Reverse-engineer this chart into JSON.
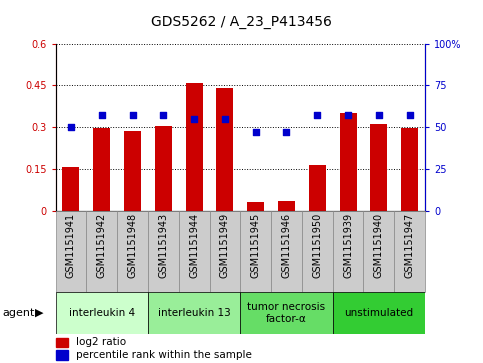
{
  "title": "GDS5262 / A_23_P413456",
  "samples": [
    "GSM1151941",
    "GSM1151942",
    "GSM1151948",
    "GSM1151943",
    "GSM1151944",
    "GSM1151949",
    "GSM1151945",
    "GSM1151946",
    "GSM1151950",
    "GSM1151939",
    "GSM1151940",
    "GSM1151947"
  ],
  "log2_ratio": [
    0.155,
    0.295,
    0.285,
    0.305,
    0.46,
    0.44,
    0.03,
    0.035,
    0.165,
    0.35,
    0.31,
    0.295
  ],
  "percentile": [
    50,
    57,
    57,
    57,
    55,
    55,
    47,
    47,
    57,
    57,
    57,
    57
  ],
  "bar_color": "#cc0000",
  "dot_color": "#0000cc",
  "ylim_left": [
    0,
    0.6
  ],
  "ylim_right": [
    0,
    100
  ],
  "yticks_left": [
    0,
    0.15,
    0.3,
    0.45,
    0.6
  ],
  "yticks_right": [
    0,
    25,
    50,
    75,
    100
  ],
  "yticklabels_left": [
    "0",
    "0.15",
    "0.3",
    "0.45",
    "0.6"
  ],
  "yticklabels_right": [
    "0",
    "25",
    "50",
    "75",
    "100%"
  ],
  "groups": [
    {
      "label": "interleukin 4",
      "indices": [
        0,
        1,
        2
      ],
      "color": "#ccffcc"
    },
    {
      "label": "interleukin 13",
      "indices": [
        3,
        4,
        5
      ],
      "color": "#99ee99"
    },
    {
      "label": "tumor necrosis\nfactor-α",
      "indices": [
        6,
        7,
        8
      ],
      "color": "#66dd66"
    },
    {
      "label": "unstimulated",
      "indices": [
        9,
        10,
        11
      ],
      "color": "#33cc33"
    }
  ],
  "agent_label": "agent",
  "legend_bar_label": "log2 ratio",
  "legend_dot_label": "percentile rank within the sample",
  "title_fontsize": 10,
  "tick_fontsize": 7,
  "label_fontsize": 8,
  "group_label_fontsize": 7.5,
  "legend_fontsize": 7.5,
  "sample_box_color": "#cccccc",
  "sample_box_edge": "#888888"
}
